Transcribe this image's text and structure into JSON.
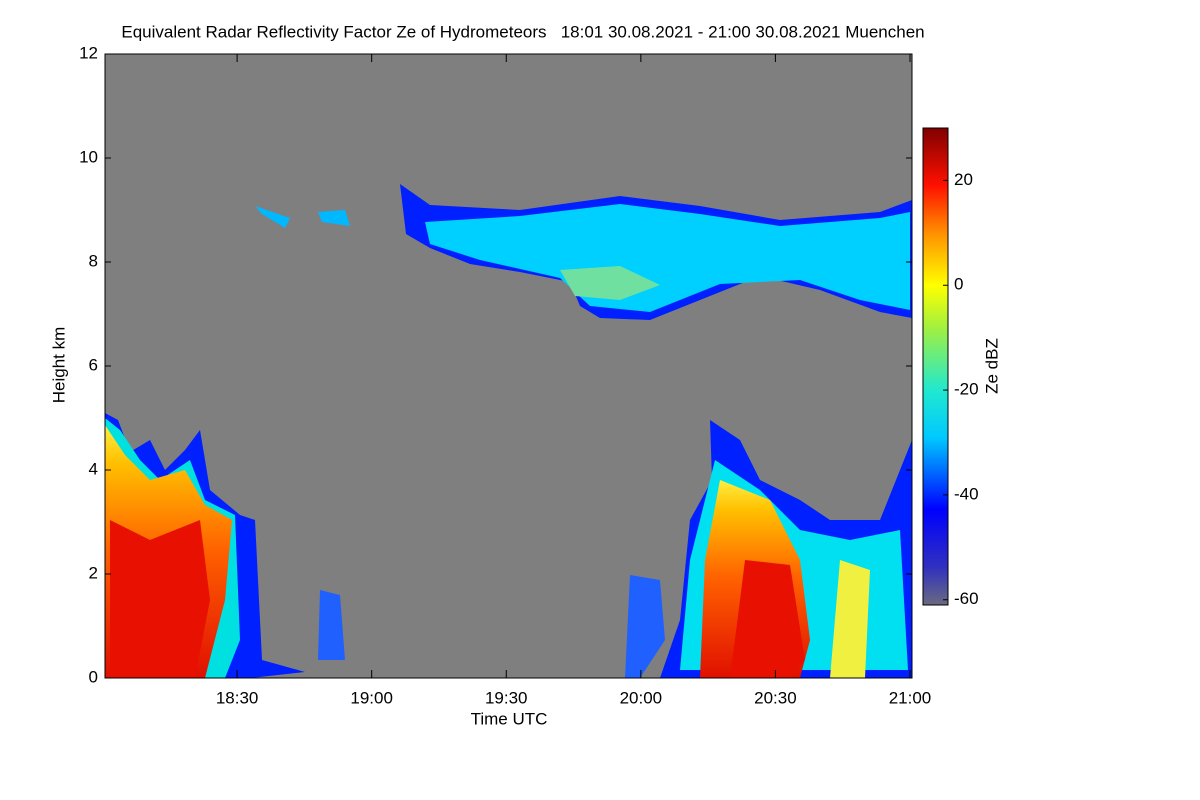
{
  "chart_data": {
    "type": "time-height",
    "title": "Equivalent Radar Reflectivity Factor Ze of Hydrometeors   18:01 30.08.2021 - 21:00 30.08.2021 Muenchen",
    "xlabel": "Time UTC",
    "ylabel": "Height km",
    "colorbar_label": "Ze dBZ",
    "xlim": [
      1,
      180
    ],
    "xticks": [
      {
        "value": 30,
        "label": "18:30"
      },
      {
        "value": 60,
        "label": "19:00"
      },
      {
        "value": 90,
        "label": "19:30"
      },
      {
        "value": 120,
        "label": "20:00"
      },
      {
        "value": 150,
        "label": "20:30"
      },
      {
        "value": 180,
        "label": "21:00"
      }
    ],
    "ylim": [
      0,
      12
    ],
    "yticks": [
      0,
      2,
      4,
      6,
      8,
      10,
      12
    ],
    "clim": [
      -61,
      30
    ],
    "cticks": [
      -60,
      -40,
      -20,
      0,
      20
    ]
  }
}
